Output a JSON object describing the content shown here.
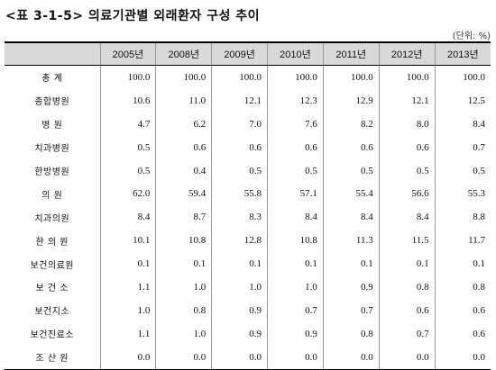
{
  "title": "<표 3-1-5>  의료기관별 외래환자 구성 추이",
  "unit": "(단위: %)",
  "table": {
    "columns": [
      "2005년",
      "2008년",
      "2009년",
      "2010년",
      "2011년",
      "2012년",
      "2013년"
    ],
    "rows": [
      {
        "label": "총    계",
        "values": [
          "100.0",
          "100.0",
          "100.0",
          "100.0",
          "100.0",
          "100.0",
          "100.0"
        ]
      },
      {
        "label": "종합병원",
        "values": [
          "10.6",
          "11.0",
          "12.1",
          "12.3",
          "12.9",
          "12.1",
          "12.5"
        ]
      },
      {
        "label": "병    원",
        "values": [
          "4.7",
          "6.2",
          "7.0",
          "7.6",
          "8.2",
          "8.0",
          "8.4"
        ]
      },
      {
        "label": "치과병원",
        "values": [
          "0.5",
          "0.6",
          "0.6",
          "0.6",
          "0.6",
          "0.6",
          "0.7"
        ]
      },
      {
        "label": "한방병원",
        "values": [
          "0.5",
          "0.4",
          "0.5",
          "0.5",
          "0.5",
          "0.5",
          "0.5"
        ]
      },
      {
        "label": "의    원",
        "values": [
          "62.0",
          "59.4",
          "55.8",
          "57.1",
          "55.4",
          "56.6",
          "55.3"
        ]
      },
      {
        "label": "치과의원",
        "values": [
          "8.4",
          "8.7",
          "8.3",
          "8.4",
          "8.4",
          "8.4",
          "8.8"
        ]
      },
      {
        "label": "한 의 원",
        "values": [
          "10.1",
          "10.8",
          "12.8",
          "10.8",
          "11.3",
          "11.5",
          "11.7"
        ]
      },
      {
        "label": "보건의료원",
        "values": [
          "0.1",
          "0.1",
          "0.1",
          "0.1",
          "0.1",
          "0.1",
          "0.1"
        ]
      },
      {
        "label": "보 건 소",
        "values": [
          "1.1",
          "1.0",
          "1.0",
          "1.0",
          "0.9",
          "0.8",
          "0.8"
        ]
      },
      {
        "label": "보건지소",
        "values": [
          "1.0",
          "0.8",
          "0.9",
          "0.7",
          "0.7",
          "0.6",
          "0.6"
        ]
      },
      {
        "label": "보건진료소",
        "values": [
          "1.1",
          "1.0",
          "0.9",
          "0.9",
          "0.8",
          "0.7",
          "0.6"
        ]
      },
      {
        "label": "조 산 원",
        "values": [
          "0.0",
          "0.0",
          "0.0",
          "0.0",
          "0.0",
          "0.0",
          "0.0"
        ]
      }
    ]
  }
}
